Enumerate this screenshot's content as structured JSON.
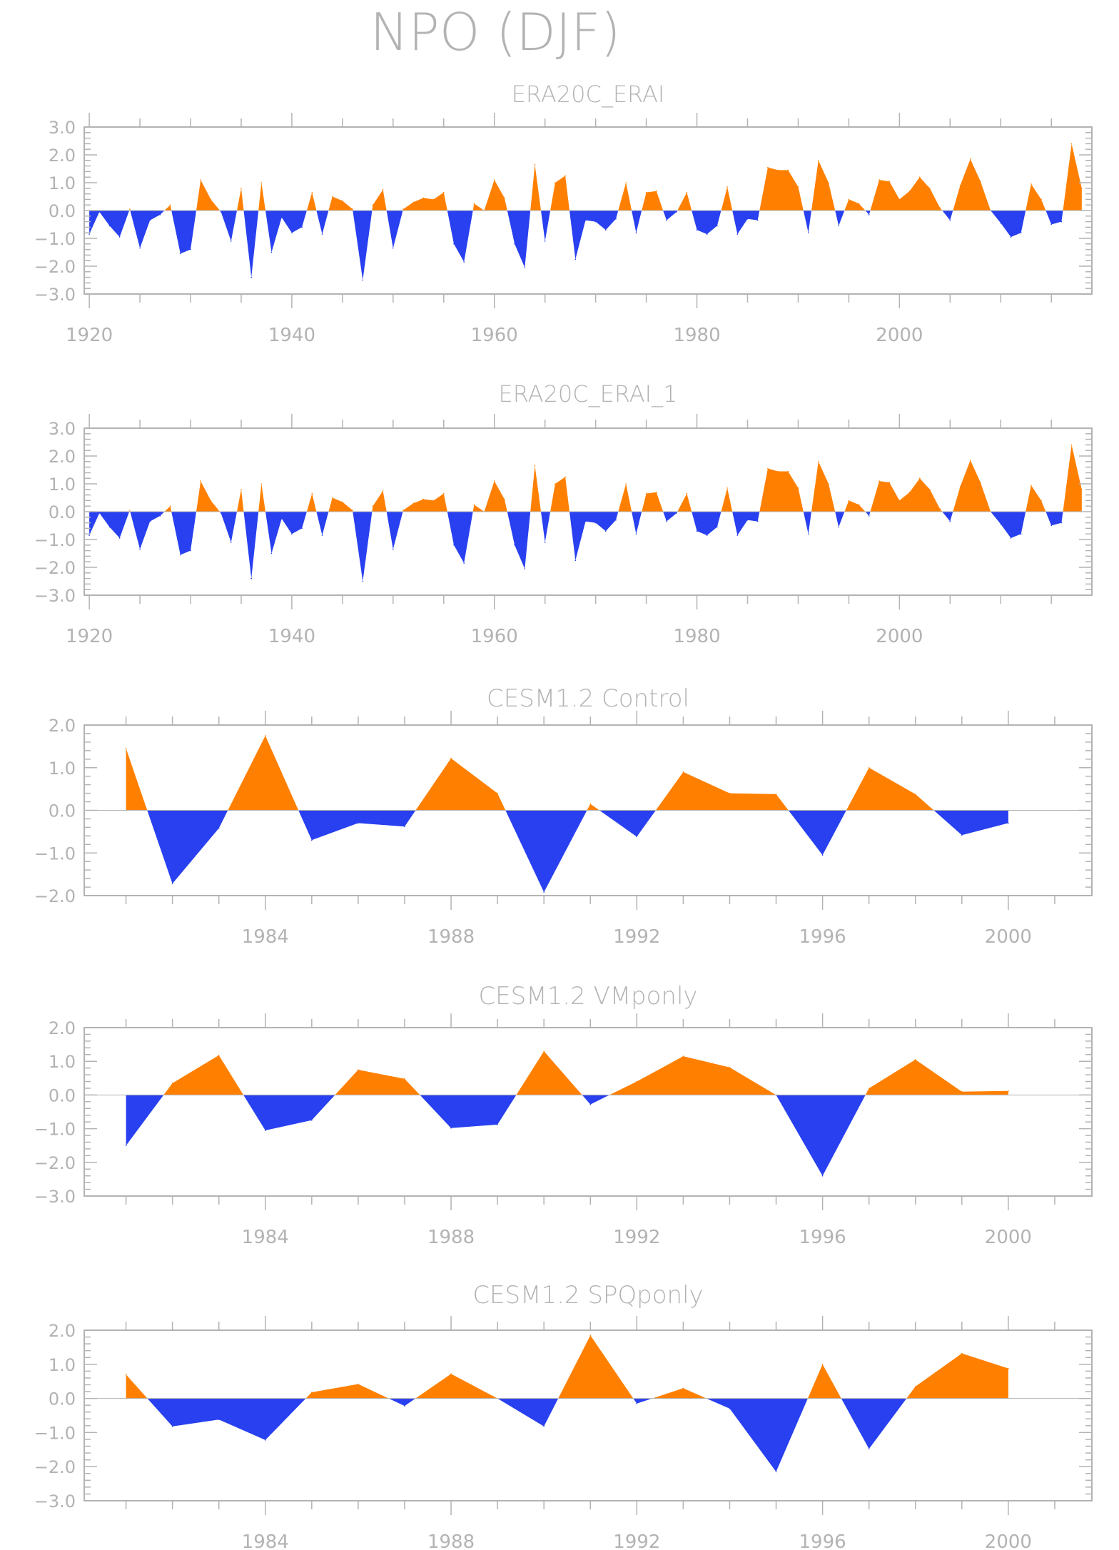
{
  "figure_title": "NPO (DJF)",
  "colors": {
    "positive": "#ff8000",
    "negative": "#2840f0",
    "axis": "#b3b3b3",
    "zero_line": "#b3b3b3"
  },
  "chart_data": [
    {
      "type": "area",
      "title": "ERA20C_ERAI",
      "xlabel": "",
      "ylabel": "",
      "xlim": [
        1919.5,
        2019
      ],
      "ylim": [
        -3.0,
        3.0
      ],
      "xticks": [
        1920,
        1940,
        1960,
        1980,
        2000
      ],
      "yticks": [
        -3.0,
        -2.0,
        -1.0,
        0.0,
        1.0,
        2.0,
        3.0
      ],
      "ytick_labels": [
        "-3.0",
        "-2.0",
        "-1.0",
        "0.0",
        "1.0",
        "2.0",
        "3.0"
      ],
      "x_start": 1920,
      "values": [
        -0.85,
        -0.05,
        -0.55,
        -0.95,
        0.05,
        -1.35,
        -0.35,
        -0.15,
        0.2,
        -1.55,
        -1.4,
        1.1,
        0.4,
        -0.05,
        -1.1,
        0.8,
        -2.4,
        1.0,
        -1.5,
        -0.25,
        -0.8,
        -0.6,
        0.65,
        -0.85,
        0.5,
        0.35,
        0.05,
        -2.5,
        0.2,
        0.75,
        -1.35,
        0.05,
        0.3,
        0.45,
        0.4,
        0.65,
        -1.2,
        -1.85,
        0.25,
        0.0,
        1.1,
        0.45,
        -1.2,
        -2.05,
        1.65,
        -1.1,
        1.0,
        1.25,
        -1.75,
        -0.35,
        -0.4,
        -0.7,
        -0.3,
        1.0,
        -0.8,
        0.65,
        0.7,
        -0.35,
        -0.05,
        0.65,
        -0.7,
        -0.85,
        -0.55,
        0.85,
        -0.85,
        -0.3,
        -0.35,
        1.55,
        1.45,
        1.45,
        0.85,
        -0.8,
        1.8,
        1.0,
        -0.55,
        0.4,
        0.25,
        -0.15,
        1.1,
        1.05,
        0.4,
        0.7,
        1.2,
        0.8,
        0.1,
        -0.35,
        0.9,
        1.85,
        1.05,
        0.0,
        -0.45,
        -0.95,
        -0.8,
        0.95,
        0.4,
        -0.5,
        -0.4,
        2.4,
        0.8
      ]
    },
    {
      "type": "area",
      "title": "ERA20C_ERAI_1",
      "xlabel": "",
      "ylabel": "",
      "xlim": [
        1919.5,
        2019
      ],
      "ylim": [
        -3.0,
        3.0
      ],
      "xticks": [
        1920,
        1940,
        1960,
        1980,
        2000
      ],
      "yticks": [
        -3.0,
        -2.0,
        -1.0,
        0.0,
        1.0,
        2.0,
        3.0
      ],
      "ytick_labels": [
        "-3.0",
        "-2.0",
        "-1.0",
        "0.0",
        "1.0",
        "2.0",
        "3.0"
      ],
      "x_start": 1920,
      "values": [
        -0.85,
        -0.05,
        -0.55,
        -0.95,
        0.05,
        -1.35,
        -0.35,
        -0.15,
        0.2,
        -1.55,
        -1.4,
        1.1,
        0.4,
        -0.05,
        -1.1,
        0.8,
        -2.4,
        1.0,
        -1.5,
        -0.25,
        -0.8,
        -0.6,
        0.65,
        -0.85,
        0.5,
        0.35,
        0.05,
        -2.5,
        0.2,
        0.75,
        -1.35,
        0.05,
        0.3,
        0.45,
        0.4,
        0.65,
        -1.2,
        -1.85,
        0.25,
        0.0,
        1.1,
        0.45,
        -1.2,
        -2.05,
        1.65,
        -1.1,
        1.0,
        1.25,
        -1.75,
        -0.35,
        -0.4,
        -0.7,
        -0.3,
        1.0,
        -0.8,
        0.65,
        0.7,
        -0.35,
        -0.05,
        0.65,
        -0.7,
        -0.85,
        -0.55,
        0.85,
        -0.85,
        -0.3,
        -0.35,
        1.55,
        1.45,
        1.45,
        0.85,
        -0.8,
        1.8,
        1.0,
        -0.55,
        0.4,
        0.25,
        -0.15,
        1.1,
        1.05,
        0.4,
        0.7,
        1.2,
        0.8,
        0.1,
        -0.35,
        0.9,
        1.85,
        1.05,
        0.0,
        -0.45,
        -0.95,
        -0.8,
        0.95,
        0.4,
        -0.5,
        -0.4,
        2.4,
        0.8
      ]
    },
    {
      "type": "area",
      "title": "CESM1.2 Control",
      "xlabel": "",
      "ylabel": "",
      "xlim": [
        1980.1,
        2001.8
      ],
      "ylim": [
        -2.0,
        2.0
      ],
      "xticks": [
        1984,
        1988,
        1992,
        1996,
        2000
      ],
      "yticks": [
        -2.0,
        -1.0,
        0.0,
        1.0,
        2.0
      ],
      "ytick_labels": [
        "-2.0",
        "-1.0",
        "0.0",
        "1.0",
        "2.0"
      ],
      "x_start": 1981,
      "values": [
        1.45,
        -1.72,
        -0.42,
        1.75,
        -0.7,
        -0.3,
        -0.38,
        1.22,
        0.4,
        -1.92,
        0.15,
        -0.62,
        0.9,
        0.4,
        0.38,
        -1.05,
        1.0,
        0.38,
        -0.58,
        -0.3
      ]
    },
    {
      "type": "area",
      "title": "CESM1.2 VMponly",
      "xlabel": "",
      "ylabel": "",
      "xlim": [
        1980.1,
        2001.8
      ],
      "ylim": [
        -3.0,
        2.0
      ],
      "xticks": [
        1984,
        1988,
        1992,
        1996,
        2000
      ],
      "yticks": [
        -3.0,
        -2.0,
        -1.0,
        0.0,
        1.0,
        2.0
      ],
      "ytick_labels": [
        "-3.0",
        "-2.0",
        "-1.0",
        "0.0",
        "1.0",
        "2.0"
      ],
      "x_start": 1981,
      "values": [
        -1.5,
        0.35,
        1.18,
        -1.05,
        -0.75,
        0.75,
        0.48,
        -0.98,
        -0.88,
        1.3,
        -0.28,
        0.4,
        1.15,
        0.82,
        0.0,
        -2.4,
        0.2,
        1.05,
        0.1,
        0.12
      ]
    },
    {
      "type": "area",
      "title": "CESM1.2 SPQponly",
      "xlabel": "",
      "ylabel": "",
      "xlim": [
        1980.1,
        2001.8
      ],
      "ylim": [
        -3.0,
        2.0
      ],
      "xticks": [
        1984,
        1988,
        1992,
        1996,
        2000
      ],
      "yticks": [
        -3.0,
        -2.0,
        -1.0,
        0.0,
        1.0,
        2.0
      ],
      "ytick_labels": [
        "-3.0",
        "-2.0",
        "-1.0",
        "0.0",
        "1.0",
        "2.0"
      ],
      "x_start": 1981,
      "values": [
        0.7,
        -0.82,
        -0.62,
        -1.22,
        0.18,
        0.42,
        -0.22,
        0.72,
        0.0,
        -0.82,
        1.85,
        -0.15,
        0.3,
        -0.3,
        -2.15,
        1.0,
        -1.48,
        0.35,
        1.32,
        0.88
      ]
    }
  ]
}
